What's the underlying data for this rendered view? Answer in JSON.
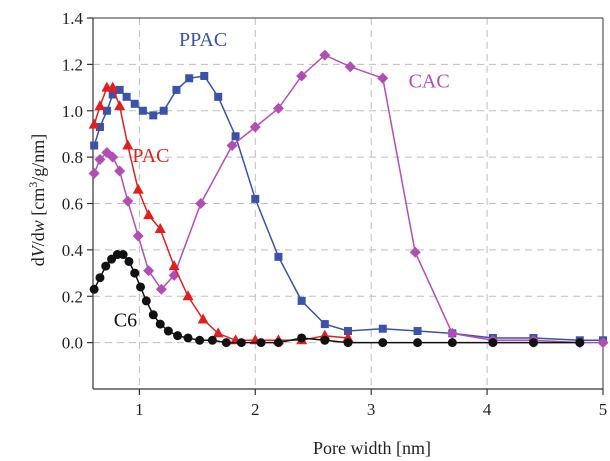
{
  "chart_data": {
    "type": "line",
    "xlabel": "Pore width [nm]",
    "ylabel": {
      "pre": "d",
      "v": "V",
      "mid": "/d",
      "w": "w",
      "post1": " [cm",
      "sup": "3",
      "post2": "/g/nm]"
    },
    "xlim": [
      0.6,
      5
    ],
    "ylim": [
      -0.2,
      1.4
    ],
    "xticks": [
      {
        "value": 1,
        "label": "1"
      },
      {
        "value": 2,
        "label": "2"
      },
      {
        "value": 3,
        "label": "3"
      },
      {
        "value": 4,
        "label": "4"
      },
      {
        "value": 5,
        "label": "5"
      }
    ],
    "yticks": [
      {
        "value": 0.0,
        "label": "0.0"
      },
      {
        "value": 0.2,
        "label": "0.2"
      },
      {
        "value": 0.4,
        "label": "0.4"
      },
      {
        "value": 0.6,
        "label": "0.6"
      },
      {
        "value": 0.8,
        "label": "0.8"
      },
      {
        "value": 1.0,
        "label": "1.0"
      },
      {
        "value": 1.2,
        "label": "1.2"
      },
      {
        "value": 1.4,
        "label": "1.4"
      }
    ],
    "grid": true,
    "legend": "inline-labels",
    "series": [
      {
        "name": "PPAC",
        "color": "#3a52a8",
        "marker": "square",
        "label_at": [
          1.55,
          1.28
        ],
        "x": [
          0.61,
          0.66,
          0.72,
          0.77,
          0.83,
          0.89,
          0.96,
          1.03,
          1.12,
          1.21,
          1.32,
          1.43,
          1.56,
          1.68,
          1.83,
          2.0,
          2.2,
          2.4,
          2.6,
          2.8,
          3.1,
          3.4,
          3.7,
          4.05,
          4.4,
          4.8,
          5.0
        ],
        "y": [
          0.85,
          0.93,
          1.0,
          1.07,
          1.09,
          1.06,
          1.03,
          1.0,
          0.98,
          1.0,
          1.09,
          1.14,
          1.15,
          1.06,
          0.89,
          0.62,
          0.37,
          0.18,
          0.08,
          0.05,
          0.06,
          0.05,
          0.04,
          0.02,
          0.02,
          0.01,
          0.01
        ]
      },
      {
        "name": "CAC",
        "color": "#b24db6",
        "marker": "diamond",
        "label_at": [
          3.5,
          1.1
        ],
        "x": [
          0.61,
          0.66,
          0.72,
          0.77,
          0.83,
          0.9,
          0.99,
          1.08,
          1.19,
          1.3,
          1.53,
          1.8,
          2.0,
          2.2,
          2.4,
          2.6,
          2.82,
          3.1,
          3.38,
          3.7,
          4.05,
          4.4,
          4.8,
          5.0
        ],
        "y": [
          0.73,
          0.79,
          0.82,
          0.8,
          0.74,
          0.61,
          0.46,
          0.31,
          0.23,
          0.29,
          0.6,
          0.85,
          0.93,
          1.01,
          1.15,
          1.24,
          1.19,
          1.14,
          0.39,
          0.04,
          0.01,
          0.01,
          0.0,
          0.0
        ]
      },
      {
        "name": "PAC",
        "color": "#e02020",
        "marker": "triangle",
        "label_at": [
          1.1,
          0.78
        ],
        "x": [
          0.61,
          0.66,
          0.72,
          0.77,
          0.83,
          0.9,
          0.99,
          1.08,
          1.18,
          1.3,
          1.42,
          1.55,
          1.68,
          1.83,
          2.0,
          2.2,
          2.4,
          2.6,
          2.8
        ],
        "y": [
          0.94,
          1.02,
          1.1,
          1.1,
          1.02,
          0.85,
          0.66,
          0.55,
          0.49,
          0.33,
          0.2,
          0.1,
          0.04,
          0.01,
          0.01,
          0.01,
          0.01,
          0.03,
          0.02
        ]
      },
      {
        "name": "C6",
        "color": "#111111",
        "marker": "circle",
        "label_at": [
          0.88,
          0.07
        ],
        "x": [
          0.61,
          0.66,
          0.71,
          0.76,
          0.81,
          0.86,
          0.91,
          0.96,
          1.01,
          1.06,
          1.12,
          1.18,
          1.25,
          1.33,
          1.42,
          1.52,
          1.63,
          1.75,
          1.88,
          2.05,
          2.2,
          2.4,
          2.6,
          2.8,
          3.1,
          3.4,
          3.7,
          4.05,
          4.4,
          4.8
        ],
        "y": [
          0.23,
          0.28,
          0.33,
          0.36,
          0.38,
          0.38,
          0.35,
          0.3,
          0.24,
          0.18,
          0.12,
          0.08,
          0.05,
          0.03,
          0.02,
          0.01,
          0.01,
          0.0,
          0.0,
          0.0,
          0.0,
          0.02,
          0.01,
          0.0,
          0.0,
          0.0,
          0.0,
          0.0,
          0.0,
          0.0
        ]
      }
    ]
  }
}
